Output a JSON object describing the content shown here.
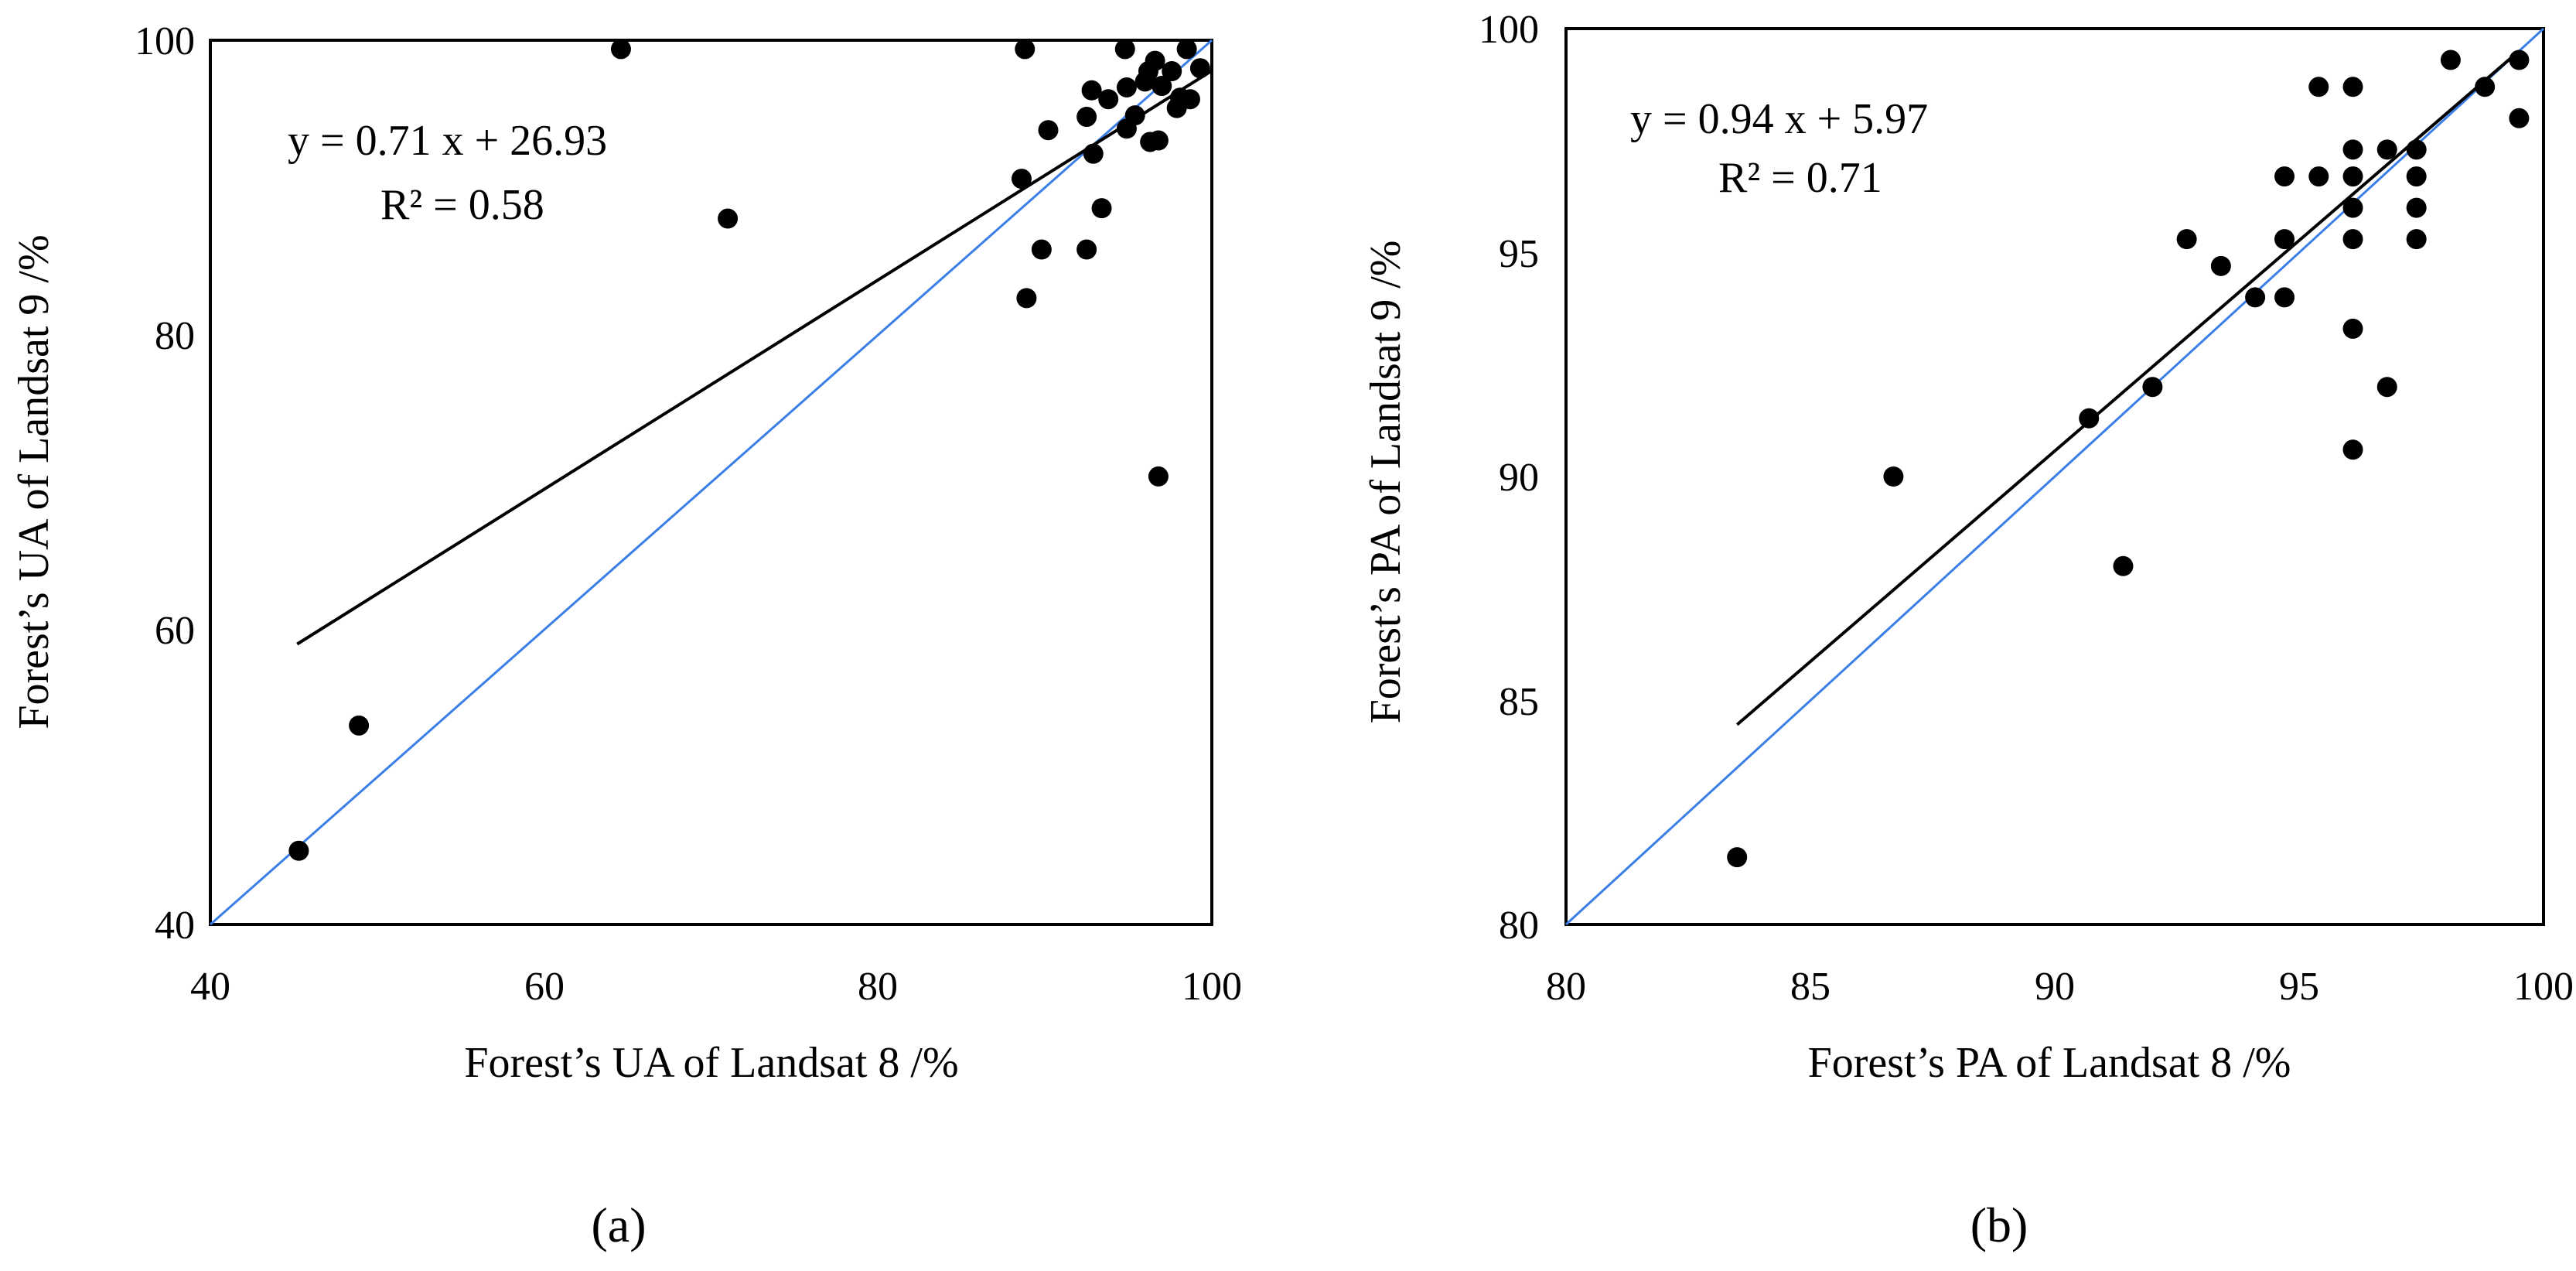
{
  "chart_data": [
    {
      "type": "scatter",
      "panel_label": "(a)",
      "xlabel": "Forest’s UA of Landsat 8 /%",
      "ylabel": "Forest’s UA of Landsat 9 /%",
      "xlim": [
        40,
        100
      ],
      "ylim": [
        40,
        100
      ],
      "xticks": [
        40,
        60,
        80,
        100
      ],
      "yticks": [
        40,
        60,
        80,
        100
      ],
      "equation": "y = 0.71 x + 26.93",
      "r2": "R² = 0.58",
      "fit": {
        "slope": 0.71,
        "intercept": 26.93,
        "x_range": [
          45.2,
          100
        ]
      },
      "reference_line": {
        "slope": 1,
        "intercept": 0
      },
      "colors": {
        "fit": "#000000",
        "reference": "#3a7ee8",
        "points": "#000000"
      },
      "points": [
        [
          45.3,
          45.0
        ],
        [
          48.9,
          53.5
        ],
        [
          64.6,
          99.4
        ],
        [
          71.0,
          87.9
        ],
        [
          88.6,
          90.6
        ],
        [
          88.8,
          99.4
        ],
        [
          88.9,
          82.5
        ],
        [
          89.8,
          85.8
        ],
        [
          90.2,
          93.9
        ],
        [
          92.5,
          94.8
        ],
        [
          92.5,
          85.8
        ],
        [
          92.8,
          96.6
        ],
        [
          92.9,
          92.3
        ],
        [
          93.4,
          88.6
        ],
        [
          93.8,
          96.0
        ],
        [
          94.8,
          99.4
        ],
        [
          94.9,
          96.8
        ],
        [
          94.9,
          94.0
        ],
        [
          95.4,
          94.9
        ],
        [
          96.0,
          97.2
        ],
        [
          96.2,
          97.9
        ],
        [
          96.3,
          93.1
        ],
        [
          96.6,
          98.6
        ],
        [
          96.8,
          70.4
        ],
        [
          96.8,
          93.2
        ],
        [
          97.0,
          96.9
        ],
        [
          97.6,
          97.9
        ],
        [
          97.9,
          95.4
        ],
        [
          98.1,
          96.1
        ],
        [
          98.5,
          99.4
        ],
        [
          98.7,
          96.0
        ],
        [
          99.3,
          98.1
        ]
      ]
    },
    {
      "type": "scatter",
      "panel_label": "(b)",
      "xlabel": "Forest’s PA of Landsat 8 /%",
      "ylabel": "Forest’s PA of Landsat 9 /%",
      "xlim": [
        80,
        100
      ],
      "ylim": [
        80,
        100
      ],
      "xticks": [
        80,
        85,
        90,
        95,
        100
      ],
      "yticks": [
        80,
        85,
        90,
        95,
        100
      ],
      "equation": "y = 0.94 x + 5.97",
      "r2": "R² = 0.71",
      "fit": {
        "slope": 0.94,
        "intercept": 5.97,
        "x_range": [
          83.5,
          99.5
        ]
      },
      "reference_line": {
        "slope": 1,
        "intercept": 0
      },
      "colors": {
        "fit": "#000000",
        "reference": "#3a7ee8",
        "points": "#000000"
      },
      "points": [
        [
          83.5,
          81.5
        ],
        [
          86.7,
          90.0
        ],
        [
          90.7,
          91.3
        ],
        [
          91.4,
          88.0
        ],
        [
          92.0,
          92.0
        ],
        [
          92.7,
          95.3
        ],
        [
          93.4,
          94.7
        ],
        [
          94.1,
          94.0
        ],
        [
          94.7,
          96.7
        ],
        [
          94.7,
          95.3
        ],
        [
          94.7,
          94.0
        ],
        [
          95.4,
          98.7
        ],
        [
          95.4,
          96.7
        ],
        [
          96.1,
          98.7
        ],
        [
          96.1,
          97.3
        ],
        [
          96.1,
          96.7
        ],
        [
          96.1,
          96.0
        ],
        [
          96.1,
          95.3
        ],
        [
          96.1,
          93.3
        ],
        [
          96.1,
          90.6
        ],
        [
          96.8,
          97.3
        ],
        [
          96.8,
          92.0
        ],
        [
          97.4,
          97.3
        ],
        [
          97.4,
          96.7
        ],
        [
          97.4,
          96.0
        ],
        [
          97.4,
          95.3
        ],
        [
          98.1,
          99.3
        ],
        [
          98.8,
          98.7
        ],
        [
          99.5,
          99.3
        ],
        [
          99.5,
          98.0
        ]
      ]
    }
  ]
}
